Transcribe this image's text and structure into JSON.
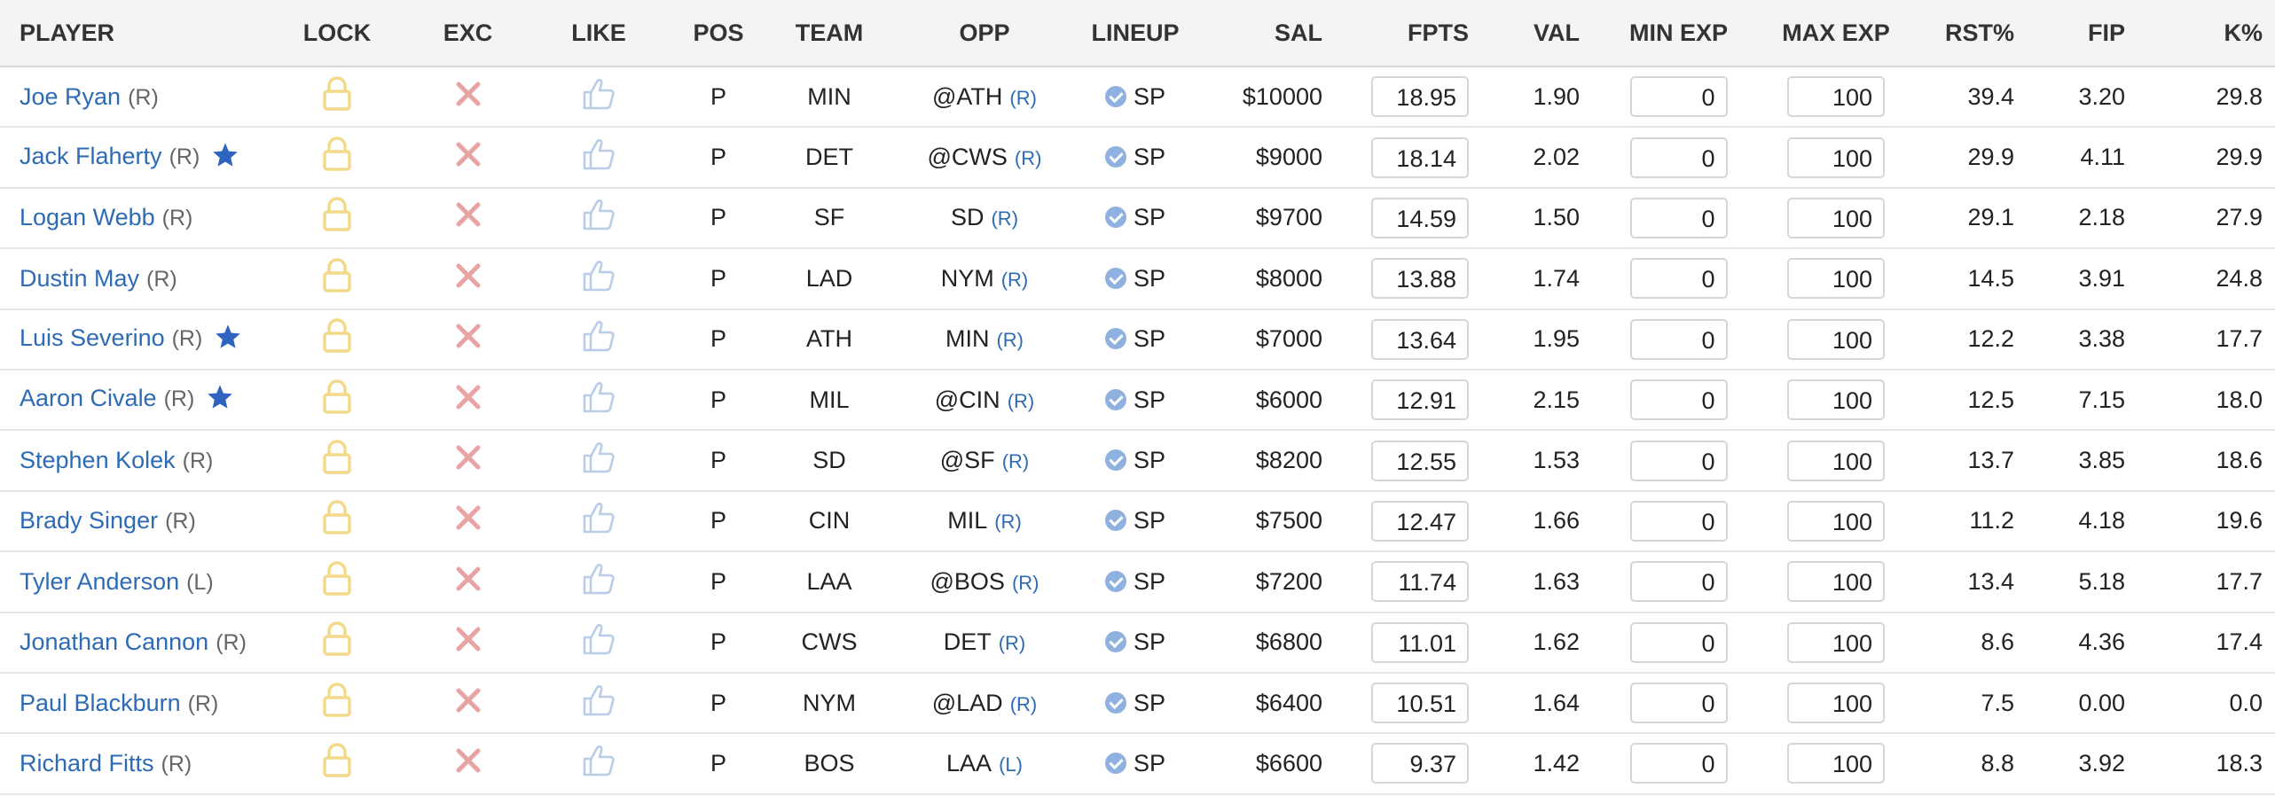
{
  "columns": {
    "player": "PLAYER",
    "lock": "LOCK",
    "exc": "EXC",
    "like": "LIKE",
    "pos": "POS",
    "team": "TEAM",
    "opp": "OPP",
    "lineup": "LINEUP",
    "sal": "SAL",
    "fpts": "FPTS",
    "val": "VAL",
    "min_exp": "MIN EXP",
    "max_exp": "MAX EXP",
    "rst": "RST%",
    "fip": "FIP",
    "k": "K%"
  },
  "icons": {
    "lock": "lock-icon",
    "exclude": "x-icon",
    "like": "thumbs-up-icon",
    "star": "star-icon",
    "confirmed": "check-circle-icon"
  },
  "colors": {
    "player_link": "#2d6bb5",
    "lock": "#f3d98a",
    "exclude": "#e8a3a3",
    "like": "#b9cde8",
    "star": "#2f63c0",
    "confirmed": "#8fb1e0"
  },
  "rows": [
    {
      "name": "Joe Ryan",
      "hand": "(R)",
      "star": false,
      "pos": "P",
      "team": "MIN",
      "opp": "@ATH",
      "opp_hand": "(R)",
      "lineup": "SP",
      "sal": "$10000",
      "fpts": "18.95",
      "val": "1.90",
      "min_exp": "0",
      "max_exp": "100",
      "rst": "39.4",
      "fip": "3.20",
      "k": "29.8"
    },
    {
      "name": "Jack Flaherty",
      "hand": "(R)",
      "star": true,
      "pos": "P",
      "team": "DET",
      "opp": "@CWS",
      "opp_hand": "(R)",
      "lineup": "SP",
      "sal": "$9000",
      "fpts": "18.14",
      "val": "2.02",
      "min_exp": "0",
      "max_exp": "100",
      "rst": "29.9",
      "fip": "4.11",
      "k": "29.9"
    },
    {
      "name": "Logan Webb",
      "hand": "(R)",
      "star": false,
      "pos": "P",
      "team": "SF",
      "opp": "SD",
      "opp_hand": "(R)",
      "lineup": "SP",
      "sal": "$9700",
      "fpts": "14.59",
      "val": "1.50",
      "min_exp": "0",
      "max_exp": "100",
      "rst": "29.1",
      "fip": "2.18",
      "k": "27.9"
    },
    {
      "name": "Dustin May",
      "hand": "(R)",
      "star": false,
      "pos": "P",
      "team": "LAD",
      "opp": "NYM",
      "opp_hand": "(R)",
      "lineup": "SP",
      "sal": "$8000",
      "fpts": "13.88",
      "val": "1.74",
      "min_exp": "0",
      "max_exp": "100",
      "rst": "14.5",
      "fip": "3.91",
      "k": "24.8"
    },
    {
      "name": "Luis Severino",
      "hand": "(R)",
      "star": true,
      "pos": "P",
      "team": "ATH",
      "opp": "MIN",
      "opp_hand": "(R)",
      "lineup": "SP",
      "sal": "$7000",
      "fpts": "13.64",
      "val": "1.95",
      "min_exp": "0",
      "max_exp": "100",
      "rst": "12.2",
      "fip": "3.38",
      "k": "17.7"
    },
    {
      "name": "Aaron Civale",
      "hand": "(R)",
      "star": true,
      "pos": "P",
      "team": "MIL",
      "opp": "@CIN",
      "opp_hand": "(R)",
      "lineup": "SP",
      "sal": "$6000",
      "fpts": "12.91",
      "val": "2.15",
      "min_exp": "0",
      "max_exp": "100",
      "rst": "12.5",
      "fip": "7.15",
      "k": "18.0"
    },
    {
      "name": "Stephen Kolek",
      "hand": "(R)",
      "star": false,
      "pos": "P",
      "team": "SD",
      "opp": "@SF",
      "opp_hand": "(R)",
      "lineup": "SP",
      "sal": "$8200",
      "fpts": "12.55",
      "val": "1.53",
      "min_exp": "0",
      "max_exp": "100",
      "rst": "13.7",
      "fip": "3.85",
      "k": "18.6"
    },
    {
      "name": "Brady Singer",
      "hand": "(R)",
      "star": false,
      "pos": "P",
      "team": "CIN",
      "opp": "MIL",
      "opp_hand": "(R)",
      "lineup": "SP",
      "sal": "$7500",
      "fpts": "12.47",
      "val": "1.66",
      "min_exp": "0",
      "max_exp": "100",
      "rst": "11.2",
      "fip": "4.18",
      "k": "19.6"
    },
    {
      "name": "Tyler Anderson",
      "hand": "(L)",
      "star": false,
      "pos": "P",
      "team": "LAA",
      "opp": "@BOS",
      "opp_hand": "(R)",
      "lineup": "SP",
      "sal": "$7200",
      "fpts": "11.74",
      "val": "1.63",
      "min_exp": "0",
      "max_exp": "100",
      "rst": "13.4",
      "fip": "5.18",
      "k": "17.7"
    },
    {
      "name": "Jonathan Cannon",
      "hand": "(R)",
      "star": false,
      "pos": "P",
      "team": "CWS",
      "opp": "DET",
      "opp_hand": "(R)",
      "lineup": "SP",
      "sal": "$6800",
      "fpts": "11.01",
      "val": "1.62",
      "min_exp": "0",
      "max_exp": "100",
      "rst": "8.6",
      "fip": "4.36",
      "k": "17.4"
    },
    {
      "name": "Paul Blackburn",
      "hand": "(R)",
      "star": false,
      "pos": "P",
      "team": "NYM",
      "opp": "@LAD",
      "opp_hand": "(R)",
      "lineup": "SP",
      "sal": "$6400",
      "fpts": "10.51",
      "val": "1.64",
      "min_exp": "0",
      "max_exp": "100",
      "rst": "7.5",
      "fip": "0.00",
      "k": "0.0"
    },
    {
      "name": "Richard Fitts",
      "hand": "(R)",
      "star": false,
      "pos": "P",
      "team": "BOS",
      "opp": "LAA",
      "opp_hand": "(L)",
      "lineup": "SP",
      "sal": "$6600",
      "fpts": "9.37",
      "val": "1.42",
      "min_exp": "0",
      "max_exp": "100",
      "rst": "8.8",
      "fip": "3.92",
      "k": "18.3"
    }
  ]
}
